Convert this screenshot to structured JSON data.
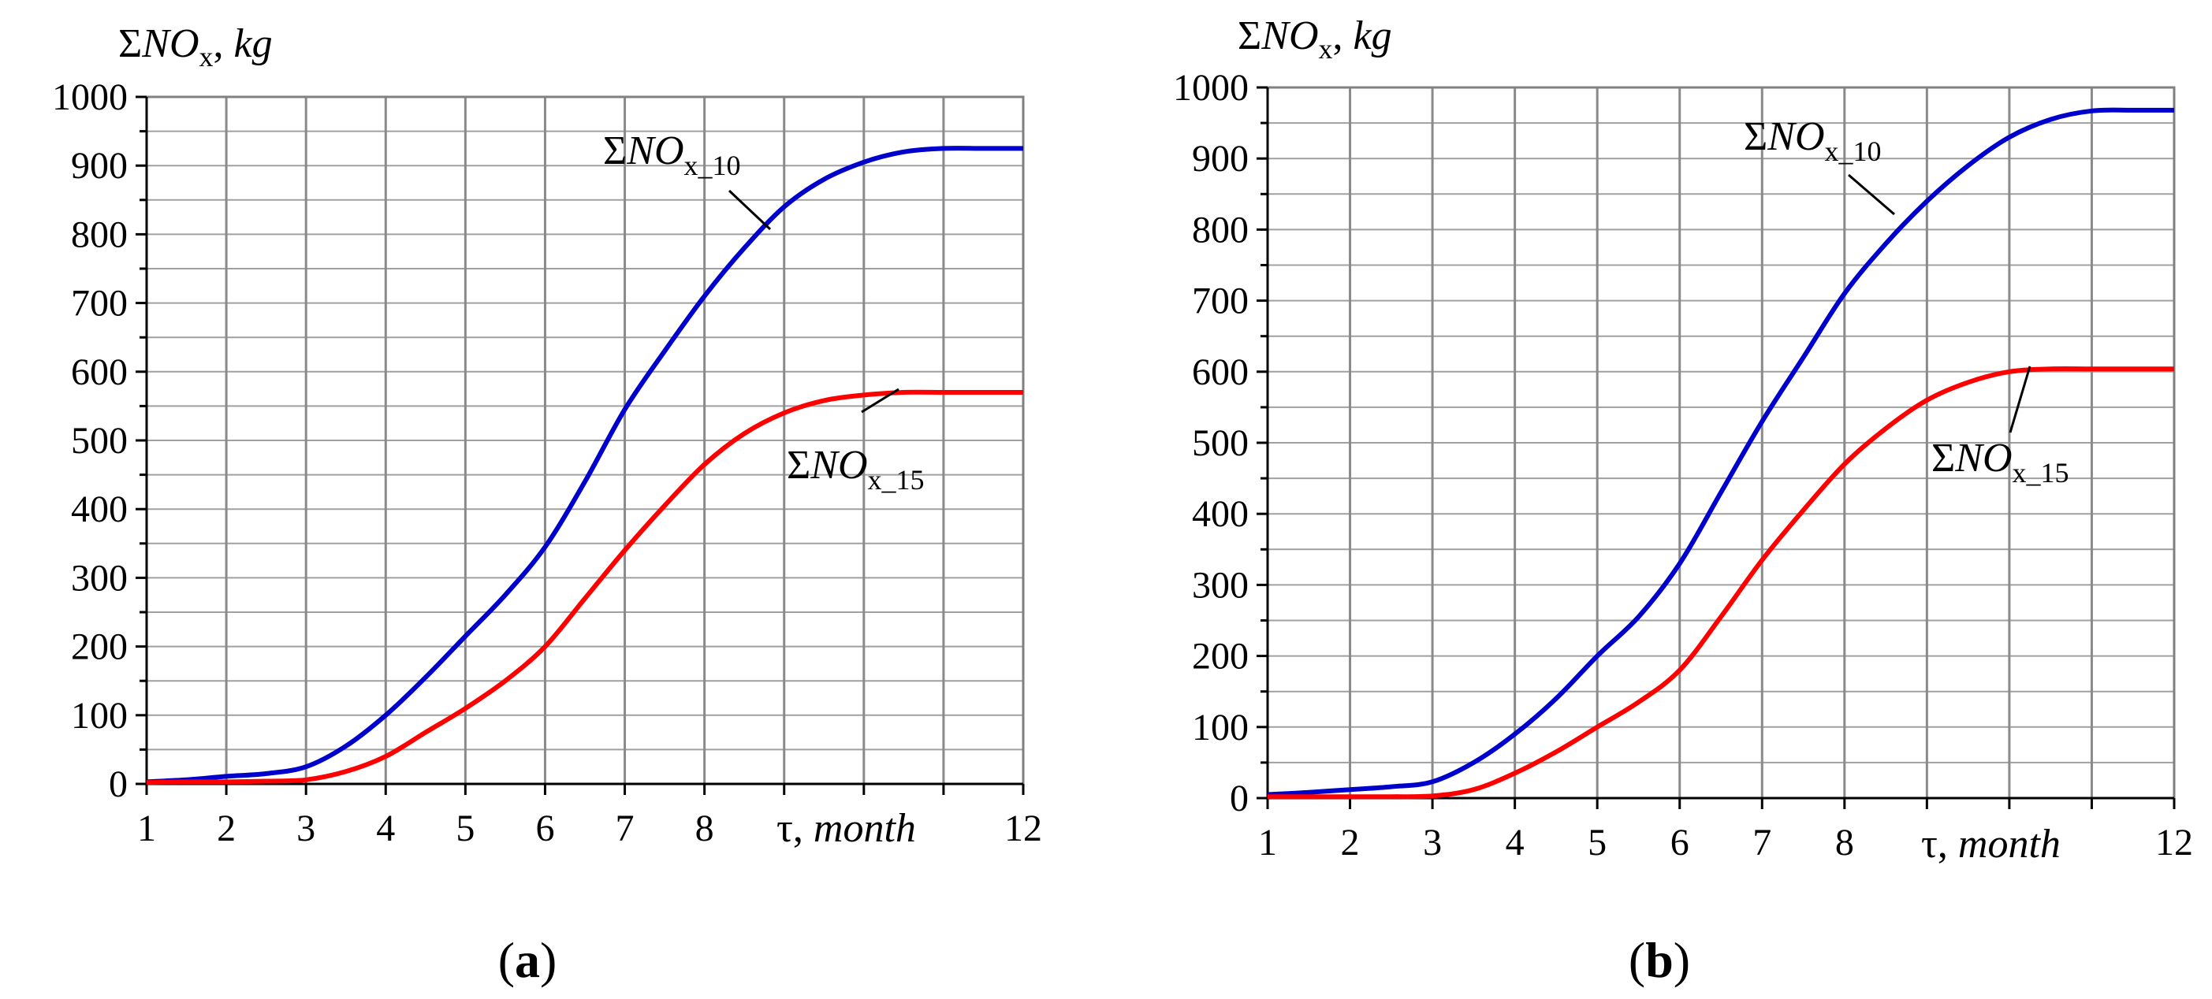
{
  "chart_data": [
    {
      "type": "line",
      "panel": "a",
      "panel_label": "a",
      "ylabel": {
        "sigma": "Σ",
        "main": "NO",
        "sub": "x",
        "unit": ", kg"
      },
      "xlabel": {
        "tau": "τ",
        "unit": ", month"
      },
      "x_ticks": [
        1,
        2,
        3,
        4,
        5,
        6,
        7,
        8,
        12
      ],
      "y_ticks": [
        0,
        100,
        200,
        300,
        400,
        500,
        600,
        700,
        800,
        900,
        1000
      ],
      "xlim": [
        1,
        12
      ],
      "ylim": [
        0,
        1000
      ],
      "grid": true,
      "series": [
        {
          "name": "ΣNOx_10",
          "color": "#0000cc",
          "label_sigma": "Σ",
          "label_main": "NO",
          "label_sub": "x_10",
          "x": [
            1,
            1.5,
            2,
            2.5,
            3,
            3.5,
            4,
            4.5,
            5,
            5.5,
            6,
            6.5,
            7,
            7.5,
            8,
            8.5,
            9,
            9.5,
            10,
            10.5,
            11,
            11.5,
            12
          ],
          "values": [
            3,
            6,
            11,
            15,
            25,
            55,
            100,
            155,
            215,
            275,
            345,
            440,
            545,
            630,
            710,
            780,
            840,
            880,
            905,
            920,
            925,
            925,
            925
          ]
        },
        {
          "name": "ΣNOx_15",
          "color": "#ff0000",
          "label_sigma": "Σ",
          "label_main": "NO",
          "label_sub": "x_15",
          "x": [
            1,
            1.5,
            2,
            2.5,
            3,
            3.5,
            4,
            4.5,
            5,
            5.5,
            6,
            6.5,
            7,
            7.5,
            8,
            8.5,
            9,
            9.5,
            10,
            10.5,
            11,
            11.5,
            12
          ],
          "values": [
            2,
            3,
            3,
            4,
            6,
            18,
            40,
            75,
            110,
            150,
            200,
            270,
            340,
            405,
            465,
            510,
            540,
            558,
            566,
            570,
            570,
            570,
            570
          ]
        }
      ]
    },
    {
      "type": "line",
      "panel": "b",
      "panel_label": "b",
      "ylabel": {
        "sigma": "Σ",
        "main": "NO",
        "sub": "x",
        "unit": ", kg"
      },
      "xlabel": {
        "tau": "τ",
        "unit": ", month"
      },
      "x_ticks": [
        1,
        2,
        3,
        4,
        5,
        6,
        7,
        8,
        12
      ],
      "y_ticks": [
        0,
        100,
        200,
        300,
        400,
        500,
        600,
        700,
        800,
        900,
        1000
      ],
      "xlim": [
        1,
        12
      ],
      "ylim": [
        0,
        1000
      ],
      "grid": true,
      "series": [
        {
          "name": "ΣNOx_10",
          "color": "#0000cc",
          "label_sigma": "Σ",
          "label_main": "NO",
          "label_sub": "x_10",
          "x": [
            1,
            1.5,
            2,
            2.5,
            3,
            3.5,
            4,
            4.5,
            5,
            5.5,
            6,
            6.5,
            7,
            7.5,
            8,
            8.5,
            9,
            9.5,
            10,
            10.5,
            11,
            11.5,
            12
          ],
          "values": [
            5,
            8,
            12,
            16,
            23,
            50,
            90,
            140,
            200,
            255,
            330,
            430,
            530,
            620,
            710,
            780,
            840,
            890,
            930,
            955,
            967,
            968,
            968
          ]
        },
        {
          "name": "ΣNOx_15",
          "color": "#ff0000",
          "label_sigma": "Σ",
          "label_main": "NO",
          "label_sub": "x_15",
          "x": [
            1,
            1.5,
            2,
            2.5,
            3,
            3.5,
            4,
            4.5,
            5,
            5.5,
            6,
            6.5,
            7,
            7.5,
            8,
            8.5,
            9,
            9.5,
            10,
            10.5,
            11,
            11.5,
            12
          ],
          "values": [
            2,
            2,
            2,
            2,
            3,
            12,
            35,
            65,
            100,
            135,
            180,
            255,
            335,
            405,
            470,
            520,
            560,
            585,
            600,
            604,
            604,
            604,
            604
          ]
        }
      ]
    }
  ]
}
